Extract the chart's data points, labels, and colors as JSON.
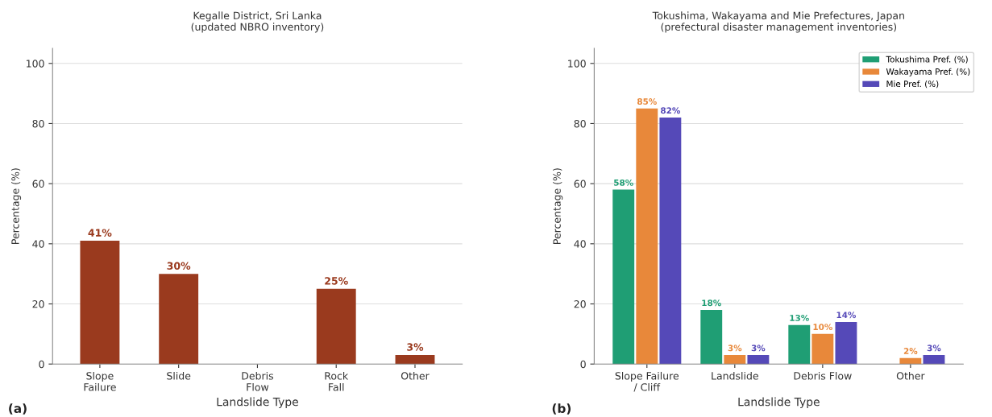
{
  "chart_data": [
    {
      "type": "bar",
      "title": "Kegalle District, Sri Lanka\n(updated NBRO inventory)",
      "xlabel": "Landslide Type",
      "ylabel": "Percentage (%)",
      "categories": [
        "Slope\nFailure",
        "Slide",
        "Debris\nFlow",
        "Rock\nFall",
        "Other"
      ],
      "series": [
        {
          "color": "#9a3a1e",
          "values": [
            41,
            30,
            0,
            25,
            3
          ],
          "value_labels": [
            "41%",
            "30%",
            null,
            "25%",
            "3%"
          ]
        }
      ],
      "ylim": [
        0,
        105
      ],
      "yticks": [
        0,
        20,
        40,
        60,
        80,
        100
      ],
      "grid": "y",
      "legend": false,
      "annotations": [
        "(a)"
      ]
    },
    {
      "type": "bar",
      "title": "Tokushima, Wakayama and Mie Prefectures, Japan\n(prefectural disaster management inventories)",
      "xlabel": "Landslide Type",
      "ylabel": "Percentage (%)",
      "categories": [
        "Slope Failure\n/ Cliff",
        "Landslide",
        "Debris Flow",
        "Other"
      ],
      "series": [
        {
          "name": "Tokushima Pref. (%)",
          "color": "#1f9e74",
          "values": [
            58,
            18,
            13,
            0
          ],
          "value_labels": [
            "58%",
            "18%",
            "13%",
            null
          ]
        },
        {
          "name": "Wakayama Pref. (%)",
          "color": "#e8883a",
          "values": [
            85,
            3,
            10,
            2
          ],
          "value_labels": [
            "85%",
            "3%",
            "10%",
            "2%"
          ]
        },
        {
          "name": "Mie Pref. (%)",
          "color": "#5549b8",
          "values": [
            82,
            3,
            14,
            3
          ],
          "value_labels": [
            "82%",
            "3%",
            "14%",
            "3%"
          ]
        }
      ],
      "ylim": [
        0,
        105
      ],
      "yticks": [
        0,
        20,
        40,
        60,
        80,
        100
      ],
      "grid": "y",
      "legend": "top right",
      "annotations": [
        "(b)"
      ]
    }
  ]
}
